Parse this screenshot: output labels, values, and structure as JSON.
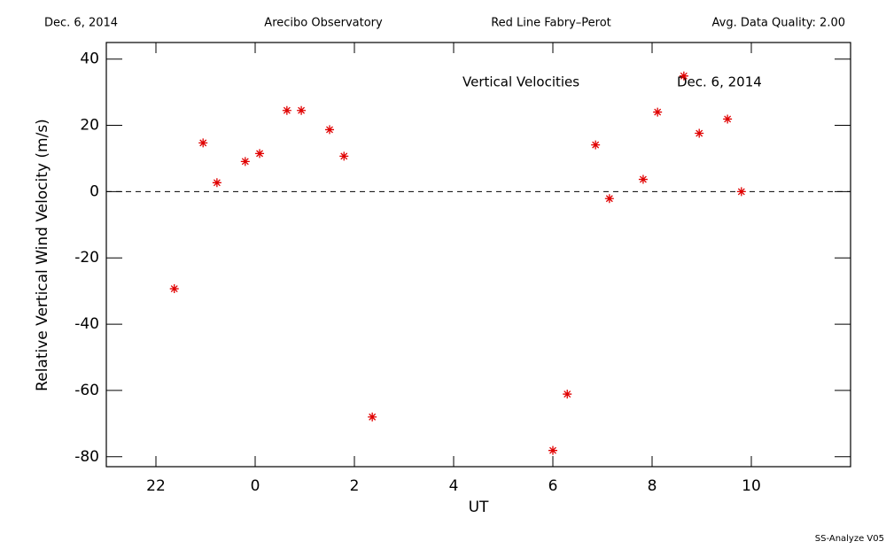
{
  "header": {
    "date": "Dec. 6, 2014",
    "site": "Arecibo Observatory",
    "instrument": "Red Line Fabry–Perot",
    "quality": "Avg. Data Quality: 2.00"
  },
  "footer": "SS-Analyze V05",
  "chart_data": {
    "type": "scatter",
    "annotations": [
      "Vertical Velocities",
      "Dec. 6, 2014"
    ],
    "xlabel": "UT",
    "ylabel": "Relative Vertical Wind Velocity (m/s)",
    "x": [
      -1.63,
      -1.05,
      -0.77,
      -0.2,
      0.09,
      0.64,
      0.93,
      1.5,
      1.79,
      2.36,
      6.0,
      6.29,
      6.86,
      7.14,
      7.82,
      8.11,
      8.64,
      8.95,
      9.52,
      9.8
    ],
    "series": [
      {
        "name": "Vertical Velocities",
        "color": "#e00000",
        "values": [
          -29.3,
          14.7,
          2.7,
          9.1,
          11.5,
          24.5,
          24.5,
          18.7,
          10.7,
          -68,
          -78.1,
          -61.1,
          14.1,
          -2.1,
          3.7,
          24,
          34.9,
          17.6,
          21.9,
          0
        ]
      }
    ],
    "xlim": [
      -3,
      12
    ],
    "xticks": [
      {
        "value": -2,
        "label": "22"
      },
      0,
      2,
      4,
      6,
      8,
      10
    ],
    "ylim": [
      -83,
      45
    ],
    "yticks": [
      -80,
      -60,
      -40,
      -20,
      0,
      20,
      40
    ],
    "hline": 0
  }
}
